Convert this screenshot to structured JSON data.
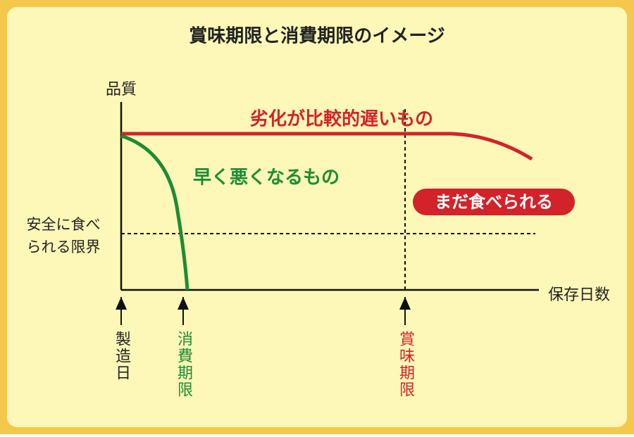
{
  "header": {
    "title": "賞味期限と消費期限のイメージ"
  },
  "axes": {
    "y_label": "品質",
    "x_label": "保存日数"
  },
  "limit": {
    "lines": [
      "安全に食べ",
      "られる限界"
    ]
  },
  "curves": {
    "slow": "劣化が比較的遅いもの",
    "fast": "早く悪くなるもの"
  },
  "badge": "まだ食べられる",
  "markers": {
    "manufacture": "製造日",
    "consume_by": "消費期限",
    "best_before": "賞味期限"
  }
}
